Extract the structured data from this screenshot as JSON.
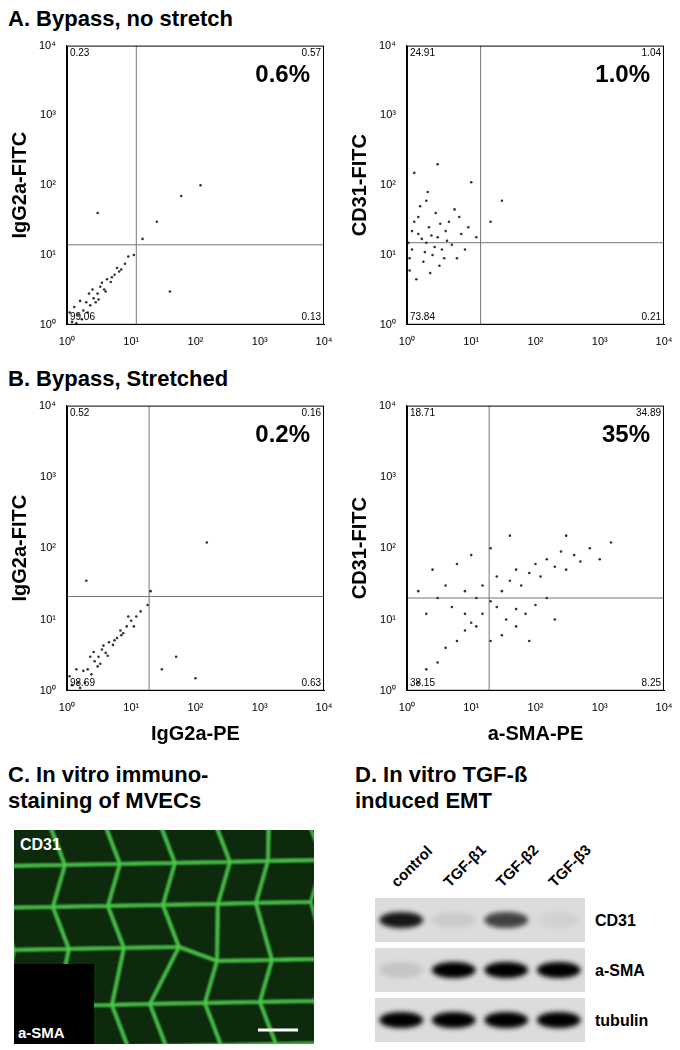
{
  "chart_data": [
    {
      "type": "scatter",
      "y_label": "IgG2a-FITC",
      "log": true,
      "grid": false,
      "color": "#333333",
      "xlim": [
        1,
        10000
      ],
      "ylim": [
        1,
        10000
      ],
      "xticks": [
        {
          "value": 1,
          "label": "10⁰"
        },
        {
          "value": 10,
          "label": "10¹"
        },
        {
          "value": 100,
          "label": "10²"
        },
        {
          "value": 1000,
          "label": "10³"
        },
        {
          "value": 10000,
          "label": "10⁴"
        }
      ],
      "yticks": [
        {
          "value": 1,
          "label": "10⁰"
        },
        {
          "value": 10,
          "label": "10¹"
        },
        {
          "value": 100,
          "label": "10²"
        },
        {
          "value": 1000,
          "label": "10³"
        },
        {
          "value": 10000,
          "label": "10⁴"
        }
      ],
      "gate": {
        "x": 12,
        "y": 14
      },
      "quadrants": {
        "upper_left": 0.23,
        "upper_right": 0.57,
        "lower_left": 99.06,
        "lower_right": 0.13
      },
      "annotation": {
        "value": 0.6,
        "label": "0.6%"
      },
      "points": [
        [
          1.2,
          1.1
        ],
        [
          1.5,
          1.4
        ],
        [
          1.8,
          1.6
        ],
        [
          2,
          2.1
        ],
        [
          2.3,
          1.9
        ],
        [
          2.6,
          2.4
        ],
        [
          3,
          2.8
        ],
        [
          3.3,
          3.5
        ],
        [
          3.8,
          3.2
        ],
        [
          4.2,
          4.5
        ],
        [
          4.8,
          4.1
        ],
        [
          5.5,
          5.2
        ],
        [
          6,
          6.5
        ],
        [
          7,
          6.2
        ],
        [
          8,
          7.5
        ],
        [
          9,
          9.5
        ],
        [
          1.3,
          1.8
        ],
        [
          1.7,
          1.2
        ],
        [
          2.2,
          2.8
        ],
        [
          2.8,
          2.1
        ],
        [
          3.5,
          4
        ],
        [
          4,
          3
        ],
        [
          1.1,
          1.5
        ],
        [
          1.4,
          1.05
        ],
        [
          2.5,
          3.2
        ],
        [
          3.1,
          2.3
        ],
        [
          5,
          4.8
        ],
        [
          6.5,
          5.8
        ],
        [
          11,
          10
        ],
        [
          15,
          17
        ],
        [
          25,
          30
        ],
        [
          60,
          70
        ],
        [
          1.6,
          2.2
        ],
        [
          2.1,
          1.5
        ],
        [
          3,
          40
        ],
        [
          40,
          3
        ],
        [
          120,
          100
        ]
      ]
    },
    {
      "type": "scatter",
      "y_label": "CD31-FITC",
      "log": true,
      "grid": false,
      "color": "#333333",
      "xlim": [
        1,
        10000
      ],
      "ylim": [
        1,
        10000
      ],
      "xticks": [
        {
          "value": 1,
          "label": "10⁰"
        },
        {
          "value": 10,
          "label": "10¹"
        },
        {
          "value": 100,
          "label": "10²"
        },
        {
          "value": 1000,
          "label": "10³"
        },
        {
          "value": 10000,
          "label": "10⁴"
        }
      ],
      "yticks": [
        {
          "value": 1,
          "label": "10⁰"
        },
        {
          "value": 10,
          "label": "10¹"
        },
        {
          "value": 100,
          "label": "10²"
        },
        {
          "value": 1000,
          "label": "10³"
        },
        {
          "value": 10000,
          "label": "10⁴"
        }
      ],
      "gate": {
        "x": 14,
        "y": 15
      },
      "quadrants": {
        "upper_left": 24.91,
        "upper_right": 1.04,
        "lower_left": 73.84,
        "lower_right": 0.21
      },
      "annotation": {
        "value": 1.0,
        "label": "1.0%"
      },
      "points": [
        [
          1.2,
          12
        ],
        [
          1.5,
          20
        ],
        [
          1.8,
          8
        ],
        [
          2,
          15
        ],
        [
          2.2,
          25
        ],
        [
          2.5,
          10
        ],
        [
          1.3,
          30
        ],
        [
          1.1,
          6
        ],
        [
          3,
          18
        ],
        [
          3.5,
          12
        ],
        [
          4,
          22
        ],
        [
          2.8,
          40
        ],
        [
          1.6,
          50
        ],
        [
          5,
          14
        ],
        [
          6,
          9
        ],
        [
          1.4,
          4.5
        ],
        [
          2.3,
          5.5
        ],
        [
          3.2,
          7
        ],
        [
          4.5,
          30
        ],
        [
          7,
          20
        ],
        [
          8,
          12
        ],
        [
          2,
          60
        ],
        [
          1.7,
          17
        ],
        [
          1.9,
          11
        ],
        [
          2.7,
          13
        ],
        [
          3.8,
          9
        ],
        [
          1.2,
          22
        ],
        [
          1.5,
          35
        ],
        [
          5.5,
          45
        ],
        [
          9,
          25
        ],
        [
          1.05,
          15
        ],
        [
          1.1,
          9
        ],
        [
          2.4,
          19
        ],
        [
          3.3,
          28
        ],
        [
          4.2,
          16
        ],
        [
          6.5,
          35
        ],
        [
          2.1,
          80
        ],
        [
          12,
          18
        ],
        [
          20,
          30
        ],
        [
          30,
          60
        ],
        [
          10,
          110
        ],
        [
          3,
          200
        ],
        [
          1.3,
          150
        ]
      ]
    },
    {
      "type": "scatter",
      "y_label": "IgG2a-FITC",
      "x_label": "IgG2a-PE",
      "log": true,
      "grid": false,
      "color": "#333333",
      "xlim": [
        1,
        10000
      ],
      "ylim": [
        1,
        10000
      ],
      "xticks": [
        {
          "value": 1,
          "label": "10⁰"
        },
        {
          "value": 10,
          "label": "10¹"
        },
        {
          "value": 100,
          "label": "10²"
        },
        {
          "value": 1000,
          "label": "10³"
        },
        {
          "value": 10000,
          "label": "10⁴"
        }
      ],
      "yticks": [
        {
          "value": 1,
          "label": "10⁰"
        },
        {
          "value": 10,
          "label": "10¹"
        },
        {
          "value": 100,
          "label": "10²"
        },
        {
          "value": 1000,
          "label": "10³"
        },
        {
          "value": 10000,
          "label": "10⁴"
        }
      ],
      "gate": {
        "x": 19,
        "y": 21
      },
      "quadrants": {
        "upper_left": 0.52,
        "upper_right": 0.16,
        "lower_left": 98.69,
        "lower_right": 0.63
      },
      "annotation": {
        "value": 0.2,
        "label": "0.2%"
      },
      "points": [
        [
          1.2,
          1.2
        ],
        [
          1.5,
          1.3
        ],
        [
          1.8,
          1.9
        ],
        [
          2.1,
          2
        ],
        [
          2.4,
          1.7
        ],
        [
          2.7,
          2.6
        ],
        [
          3.1,
          3
        ],
        [
          3.5,
          3.8
        ],
        [
          4,
          3.4
        ],
        [
          4.5,
          4.8
        ],
        [
          5.2,
          4.4
        ],
        [
          6,
          5.5
        ],
        [
          6.8,
          7
        ],
        [
          7.5,
          6.4
        ],
        [
          8.5,
          8
        ],
        [
          10,
          9.6
        ],
        [
          12,
          11
        ],
        [
          1.4,
          2
        ],
        [
          1.9,
          1.3
        ],
        [
          2.3,
          3
        ],
        [
          3,
          2.2
        ],
        [
          3.7,
          4.3
        ],
        [
          4.3,
          3.1
        ],
        [
          1.1,
          1.6
        ],
        [
          1.6,
          1.1
        ],
        [
          2.6,
          3.5
        ],
        [
          3.3,
          2.4
        ],
        [
          5.5,
          5.1
        ],
        [
          7,
          6
        ],
        [
          14,
          13
        ],
        [
          18,
          16
        ],
        [
          9,
          11
        ],
        [
          11,
          8
        ],
        [
          20,
          25
        ],
        [
          30,
          2
        ],
        [
          50,
          3
        ],
        [
          100,
          1.5
        ],
        [
          2,
          35
        ],
        [
          150,
          120
        ]
      ]
    },
    {
      "type": "scatter",
      "y_label": "CD31-FITC",
      "x_label": "a-SMA-PE",
      "log": true,
      "grid": false,
      "color": "#333333",
      "xlim": [
        1,
        10000
      ],
      "ylim": [
        1,
        10000
      ],
      "xticks": [
        {
          "value": 1,
          "label": "10⁰"
        },
        {
          "value": 10,
          "label": "10¹"
        },
        {
          "value": 100,
          "label": "10²"
        },
        {
          "value": 1000,
          "label": "10³"
        },
        {
          "value": 10000,
          "label": "10⁴"
        }
      ],
      "yticks": [
        {
          "value": 1,
          "label": "10⁰"
        },
        {
          "value": 10,
          "label": "10¹"
        },
        {
          "value": 100,
          "label": "10²"
        },
        {
          "value": 1000,
          "label": "10³"
        },
        {
          "value": 10000,
          "label": "10⁴"
        }
      ],
      "gate": {
        "x": 19,
        "y": 20
      },
      "quadrants": {
        "upper_left": 18.71,
        "upper_right": 34.89,
        "lower_left": 38.15,
        "lower_right": 8.25
      },
      "annotation": {
        "value": 35,
        "label": "35%"
      },
      "points": [
        [
          1.5,
          1.3
        ],
        [
          2,
          2
        ],
        [
          3,
          2.5
        ],
        [
          4,
          4
        ],
        [
          6,
          5
        ],
        [
          8,
          7
        ],
        [
          10,
          9
        ],
        [
          5,
          15
        ],
        [
          8,
          25
        ],
        [
          12,
          20
        ],
        [
          15,
          30
        ],
        [
          20,
          18
        ],
        [
          25,
          40
        ],
        [
          30,
          25
        ],
        [
          40,
          35
        ],
        [
          50,
          50
        ],
        [
          60,
          30
        ],
        [
          80,
          45
        ],
        [
          100,
          60
        ],
        [
          120,
          40
        ],
        [
          150,
          70
        ],
        [
          200,
          55
        ],
        [
          250,
          90
        ],
        [
          300,
          50
        ],
        [
          400,
          80
        ],
        [
          500,
          65
        ],
        [
          700,
          100
        ],
        [
          1000,
          70
        ],
        [
          2,
          12
        ],
        [
          3,
          20
        ],
        [
          4,
          30
        ],
        [
          1.5,
          25
        ],
        [
          2.5,
          50
        ],
        [
          6,
          60
        ],
        [
          10,
          80
        ],
        [
          20,
          100
        ],
        [
          40,
          150
        ],
        [
          15,
          12
        ],
        [
          25,
          15
        ],
        [
          35,
          10
        ],
        [
          50,
          14
        ],
        [
          70,
          12
        ],
        [
          100,
          16
        ],
        [
          150,
          20
        ],
        [
          30,
          6
        ],
        [
          50,
          8
        ],
        [
          80,
          5
        ],
        [
          200,
          10
        ],
        [
          20,
          5
        ],
        [
          12,
          8
        ],
        [
          8,
          12
        ],
        [
          300,
          150
        ],
        [
          1500,
          120
        ]
      ]
    }
  ],
  "panels": [
    {
      "title": "A. Bypass, no stretch"
    },
    {
      "title": "B. Bypass, Stretched"
    },
    {
      "title": [
        "C. In vitro immuno-",
        "staining of MVECs"
      ],
      "image_labels": [
        "CD31",
        "a-SMA"
      ]
    },
    {
      "title": [
        "D. In vitro TGF-ß",
        "induced EMT"
      ],
      "lanes": [
        "control",
        "TGF-β1",
        "TGF-β2",
        "TGF-β3"
      ],
      "blots": [
        {
          "label": "CD31",
          "intensities": [
            0.9,
            0.08,
            0.7,
            0.05
          ]
        },
        {
          "label": "a-SMA",
          "intensities": [
            0.1,
            1,
            1,
            1
          ]
        },
        {
          "label": "tubulin",
          "intensities": [
            1,
            1,
            1,
            1
          ]
        }
      ]
    }
  ]
}
